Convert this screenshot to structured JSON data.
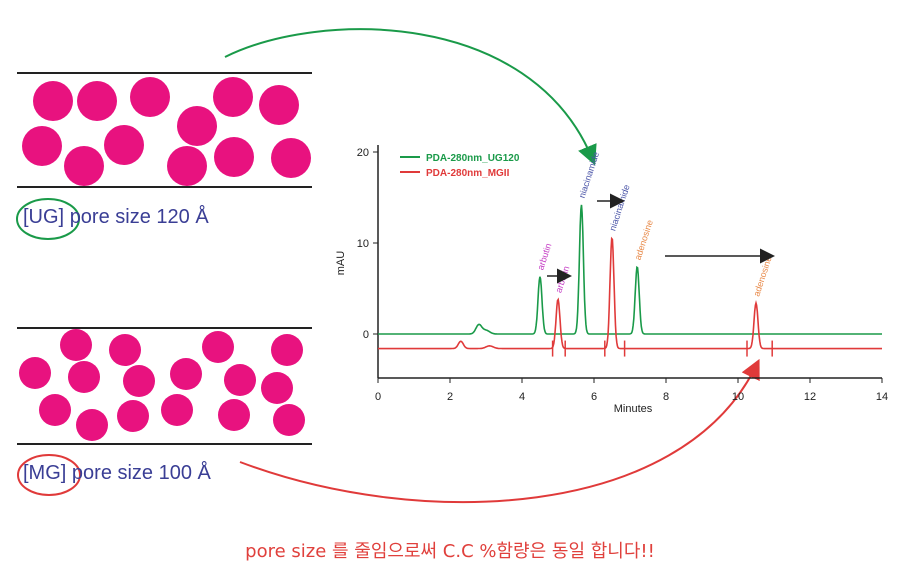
{
  "colors": {
    "bead": "#e8127f",
    "ug_green": "#1a9a49",
    "mg_red": "#e03a3a",
    "label_blue": "#3a3e95",
    "peak_purple": "#c43bc4",
    "peak_blue": "#4b55a8",
    "peak_orange": "#e88a4a",
    "caption": "#e0403c"
  },
  "ug": {
    "bracket": "[UG]",
    "label": "pore size 120 Å"
  },
  "mg": {
    "bracket": "[MG]",
    "label": "pore size 100 Å"
  },
  "caption": "pore size 를 줄임으로써 C.C %함량은 동일 합니다!!",
  "chart_data": {
    "type": "line",
    "xlabel": "Minutes",
    "ylabel": "mAU",
    "xlim": [
      0,
      14
    ],
    "ylim": [
      -5,
      20
    ],
    "x_ticks": [
      "0",
      "2",
      "4",
      "6",
      "8",
      "10",
      "12",
      "14"
    ],
    "y_ticks": [
      "0",
      "10",
      "20"
    ],
    "legend": [
      "PDA-280nm_UG120",
      "PDA-280nm_MGII"
    ],
    "legend_position": "top-left",
    "series": [
      {
        "name": "PDA-280nm_UG120",
        "color": "#1a9a49",
        "baseline": 0.0,
        "peaks": [
          {
            "label": "arbutin",
            "x": 4.5,
            "height": 6.3
          },
          {
            "label": "niacinamide",
            "x": 5.65,
            "height": 14.2
          },
          {
            "label": "adenosine",
            "x": 7.2,
            "height": 7.4
          }
        ]
      },
      {
        "name": "PDA-280nm_MGII",
        "color": "#e03a3a",
        "baseline": -1.6,
        "peaks": [
          {
            "label": "arbutin",
            "x": 5.0,
            "height": 5.4
          },
          {
            "label": "niacinamide",
            "x": 6.5,
            "height": 12.2
          },
          {
            "label": "adenosine",
            "x": 10.5,
            "height": 5.0
          }
        ]
      }
    ]
  }
}
